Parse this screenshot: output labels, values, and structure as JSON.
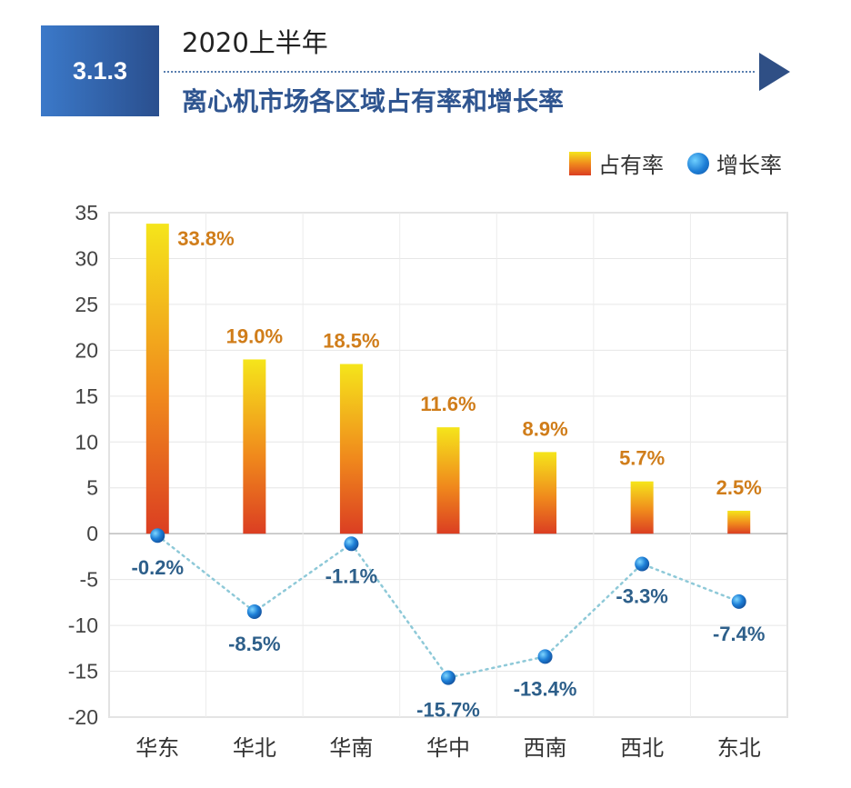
{
  "header": {
    "section_number": "3.1.3",
    "period": "2020上半年",
    "title": "离心机市场各区域占有率和增长率"
  },
  "legend": {
    "share_label": "占有率",
    "growth_label": "增长率"
  },
  "colors": {
    "bar_top": "#f5e51b",
    "bar_mid": "#f08a1c",
    "bar_bottom": "#db3e22",
    "share_label": "#d07d1a",
    "growth_label": "#2d5f8a",
    "dot": "#1d7ed6",
    "growth_line": "#8ec9d8"
  },
  "chart_data": {
    "type": "bar",
    "categories": [
      "华东",
      "华北",
      "华南",
      "华中",
      "西南",
      "西北",
      "东北"
    ],
    "series": [
      {
        "name": "占有率",
        "kind": "bar",
        "values": [
          33.8,
          19.0,
          18.5,
          11.6,
          8.9,
          5.7,
          2.5
        ],
        "labels": [
          "33.8%",
          "19.0%",
          "18.5%",
          "11.6%",
          "8.9%",
          "5.7%",
          "2.5%"
        ]
      },
      {
        "name": "增长率",
        "kind": "line-dots",
        "values": [
          -0.2,
          -8.5,
          -1.1,
          -15.7,
          -13.4,
          -3.3,
          -7.4
        ],
        "labels": [
          "-0.2%",
          "-8.5%",
          "-1.1%",
          "-15.7%",
          "-13.4%",
          "-3.3%",
          "-7.4%"
        ]
      }
    ],
    "ylim": [
      -20,
      35
    ],
    "yticks": [
      35,
      30,
      25,
      20,
      15,
      10,
      5,
      0,
      -5,
      -10,
      -15,
      -20
    ],
    "grid": true,
    "legend_position": "top-right"
  }
}
